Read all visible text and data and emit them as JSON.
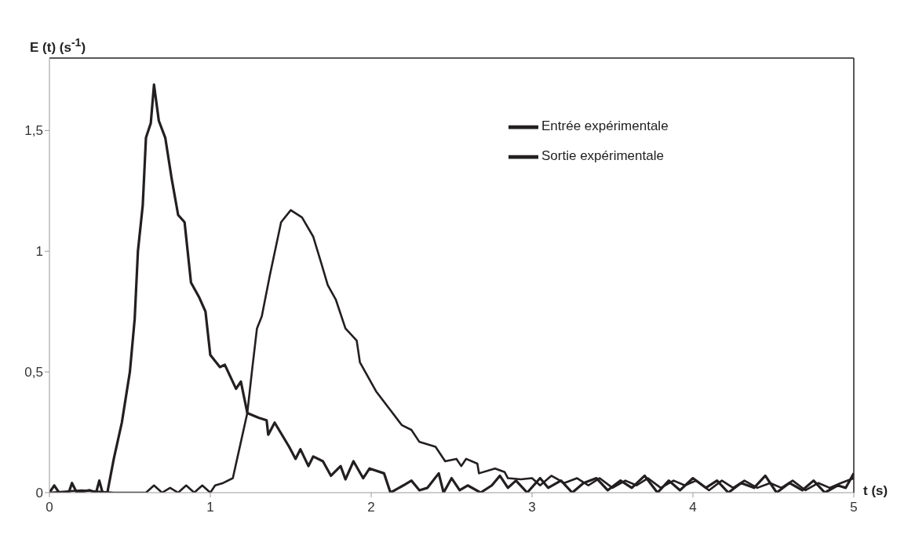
{
  "chart_data": {
    "type": "line",
    "ylabel": "E (t) (s$^{-1}$)",
    "xlabel": "t (s)",
    "xlim": [
      0,
      5
    ],
    "xticks": [
      0,
      1,
      2,
      3,
      4,
      5
    ],
    "ylim": [
      0,
      1.8
    ],
    "yticks": [
      0,
      {
        "value": 0.5,
        "label": "0,5"
      },
      {
        "value": 1,
        "label": "1"
      },
      {
        "value": 1.5,
        "label": "1,5"
      }
    ],
    "grid": false,
    "legend": "top right",
    "marker": "none",
    "line_style": "solid",
    "series": [
      {
        "name": "Entrée expérimentale",
        "color": "#231f20",
        "x": [
          0,
          0.03,
          0.06,
          0.12,
          0.14,
          0.17,
          0.25,
          0.29,
          0.31,
          0.33,
          0.36,
          0.4,
          0.45,
          0.5,
          0.53,
          0.55,
          0.58,
          0.6,
          0.63,
          0.65,
          0.68,
          0.72,
          0.76,
          0.8,
          0.84,
          0.88,
          0.93,
          0.97,
          1.0,
          1.06,
          1.09,
          1.16,
          1.19,
          1.23,
          1.3,
          1.35,
          1.36,
          1.4,
          1.49,
          1.53,
          1.56,
          1.61,
          1.64,
          1.7,
          1.75,
          1.81,
          1.84,
          1.89,
          1.95,
          1.99,
          2.08,
          2.12,
          2.2,
          2.25,
          2.3,
          2.35,
          2.42,
          2.45,
          2.5,
          2.55,
          2.6,
          2.68,
          2.75,
          2.8,
          2.85,
          2.9,
          2.97,
          3.05,
          3.1,
          3.18,
          3.25,
          3.32,
          3.4,
          3.47,
          3.55,
          3.62,
          3.7,
          3.78,
          3.85,
          3.92,
          4.0,
          4.08,
          4.15,
          4.22,
          4.3,
          4.38,
          4.45,
          4.52,
          4.6,
          4.68,
          4.75,
          4.82,
          4.9,
          4.95,
          5.0
        ],
        "values": [
          0,
          0.03,
          0,
          0,
          0.04,
          0,
          0.01,
          0,
          0.05,
          0,
          0,
          0.14,
          0.29,
          0.5,
          0.72,
          1.0,
          1.19,
          1.47,
          1.53,
          1.69,
          1.54,
          1.47,
          1.3,
          1.15,
          1.12,
          0.87,
          0.81,
          0.75,
          0.57,
          0.52,
          0.53,
          0.43,
          0.46,
          0.33,
          0.31,
          0.3,
          0.24,
          0.29,
          0.19,
          0.14,
          0.18,
          0.11,
          0.15,
          0.13,
          0.07,
          0.11,
          0.055,
          0.13,
          0.06,
          0.1,
          0.08,
          0,
          0.03,
          0.05,
          0.01,
          0.02,
          0.08,
          0,
          0.06,
          0.01,
          0.03,
          0,
          0.03,
          0.07,
          0.02,
          0.05,
          0,
          0.06,
          0.02,
          0.05,
          0,
          0.04,
          0.06,
          0.01,
          0.05,
          0.02,
          0.07,
          0,
          0.05,
          0.01,
          0.06,
          0.02,
          0.05,
          0,
          0.04,
          0.02,
          0.07,
          0,
          0.04,
          0.01,
          0.05,
          0,
          0.03,
          0.02,
          0.08
        ]
      },
      {
        "name": "Sortie expérimentale",
        "color": "#231f20",
        "x": [
          0,
          0.2,
          0.4,
          0.6,
          0.65,
          0.7,
          0.75,
          0.8,
          0.85,
          0.9,
          0.95,
          1.0,
          1.03,
          1.08,
          1.14,
          1.18,
          1.23,
          1.26,
          1.29,
          1.32,
          1.37,
          1.44,
          1.5,
          1.57,
          1.64,
          1.69,
          1.73,
          1.78,
          1.84,
          1.91,
          1.93,
          2.03,
          2.11,
          2.19,
          2.25,
          2.3,
          2.4,
          2.46,
          2.53,
          2.56,
          2.59,
          2.66,
          2.67,
          2.77,
          2.83,
          2.85,
          2.93,
          3.0,
          3.05,
          3.12,
          3.2,
          3.28,
          3.35,
          3.42,
          3.5,
          3.58,
          3.65,
          3.72,
          3.8,
          3.88,
          3.95,
          4.02,
          4.1,
          4.18,
          4.25,
          4.32,
          4.4,
          4.48,
          4.55,
          4.62,
          4.7,
          4.78,
          4.85,
          4.92,
          5.0
        ],
        "values": [
          0,
          0.01,
          0,
          0,
          0.03,
          0,
          0.02,
          0,
          0.03,
          0,
          0.03,
          0,
          0.03,
          0.04,
          0.06,
          0.18,
          0.33,
          0.51,
          0.68,
          0.73,
          0.9,
          1.12,
          1.17,
          1.14,
          1.06,
          0.95,
          0.86,
          0.8,
          0.68,
          0.63,
          0.54,
          0.42,
          0.35,
          0.28,
          0.26,
          0.21,
          0.19,
          0.13,
          0.14,
          0.11,
          0.14,
          0.12,
          0.08,
          0.1,
          0.085,
          0.06,
          0.055,
          0.06,
          0.03,
          0.07,
          0.04,
          0.06,
          0.03,
          0.06,
          0.02,
          0.05,
          0.03,
          0.06,
          0.02,
          0.05,
          0.03,
          0.05,
          0.01,
          0.05,
          0.02,
          0.05,
          0.02,
          0.04,
          0.02,
          0.05,
          0.01,
          0.04,
          0.02,
          0.04,
          0.06
        ]
      }
    ]
  }
}
